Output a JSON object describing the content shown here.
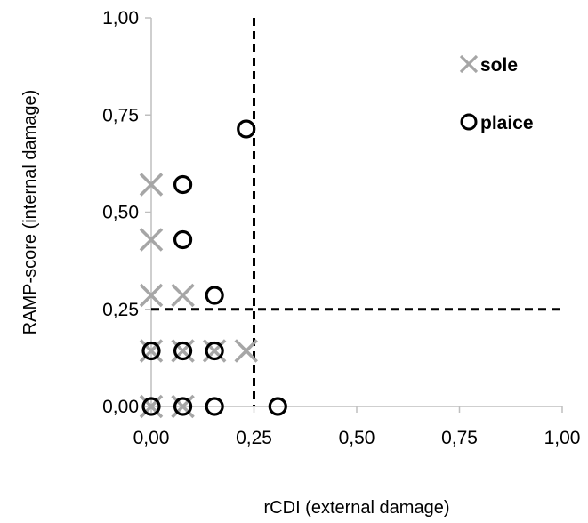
{
  "chart_data": {
    "type": "scatter",
    "xlabel": "rCDI (external damage)",
    "ylabel": "RAMP-score (internal damage)",
    "xlim": [
      0,
      1
    ],
    "ylim": [
      0,
      1
    ],
    "x_ticks": [
      "0,00",
      "0,25",
      "0,50",
      "0,75",
      "1,00"
    ],
    "y_ticks": [
      "0,00",
      "0,25",
      "0,50",
      "0,75",
      "1,00"
    ],
    "grid": false,
    "legend_position": "top-right",
    "thresholds": {
      "x": 0.25,
      "y": 0.25
    },
    "series": [
      {
        "name": "sole",
        "marker": "x",
        "color": "#a6a6a6",
        "points": [
          [
            0,
            0.571
          ],
          [
            0,
            0.429
          ],
          [
            0,
            0.286
          ],
          [
            0.077,
            0.286
          ],
          [
            0,
            0.143
          ],
          [
            0.077,
            0.143
          ],
          [
            0.154,
            0.143
          ],
          [
            0.231,
            0.143
          ],
          [
            0,
            0
          ],
          [
            0.077,
            0
          ]
        ]
      },
      {
        "name": "plaice",
        "marker": "circle",
        "color": "#000000",
        "points": [
          [
            0.231,
            0.714
          ],
          [
            0.077,
            0.571
          ],
          [
            0.077,
            0.429
          ],
          [
            0.154,
            0.286
          ],
          [
            0,
            0.143
          ],
          [
            0.077,
            0.143
          ],
          [
            0.154,
            0.143
          ],
          [
            0,
            0
          ],
          [
            0.077,
            0
          ],
          [
            0.154,
            0
          ],
          [
            0.308,
            0
          ]
        ]
      }
    ]
  }
}
